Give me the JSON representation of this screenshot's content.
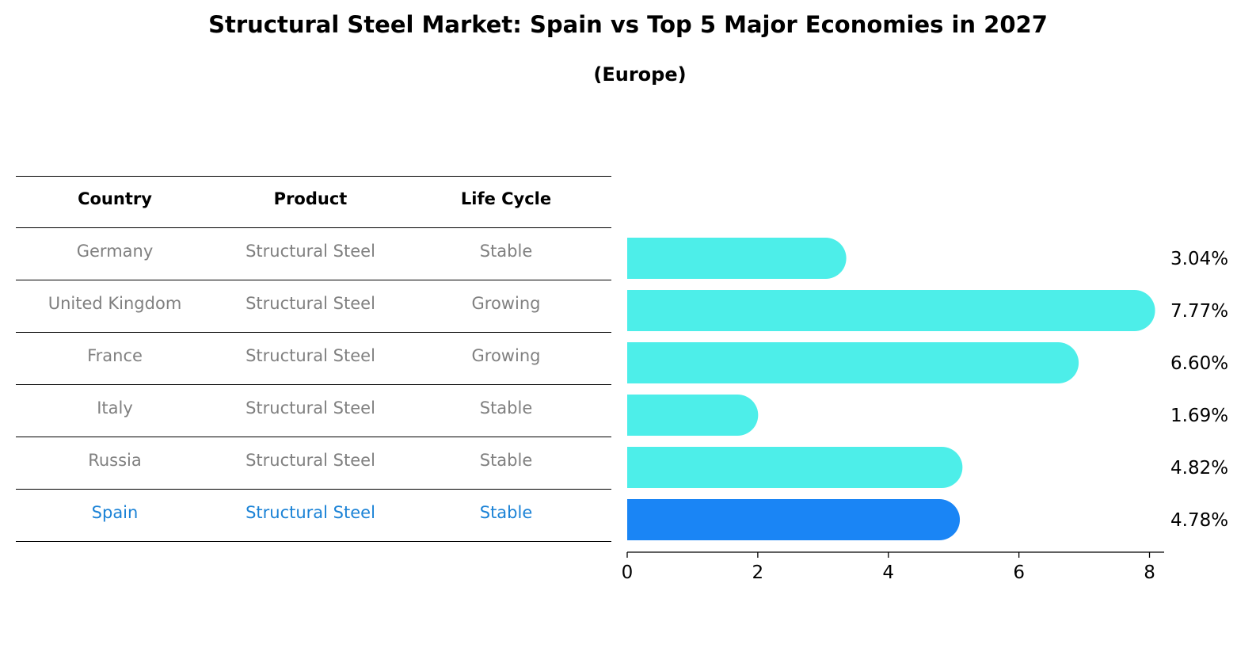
{
  "title": "Structural Steel Market: Spain vs Top 5 Major Economies in 2027",
  "subtitle": "(Europe)",
  "table": {
    "headers": [
      "Country",
      "Product",
      "Life Cycle"
    ],
    "rows": [
      {
        "country": "Germany",
        "product": "Structural Steel",
        "life_cycle": "Stable"
      },
      {
        "country": "United Kingdom",
        "product": "Structural Steel",
        "life_cycle": "Growing"
      },
      {
        "country": "France",
        "product": "Structural Steel",
        "life_cycle": "Growing"
      },
      {
        "country": "Italy",
        "product": "Structural Steel",
        "life_cycle": "Stable"
      },
      {
        "country": "Russia",
        "product": "Structural Steel",
        "life_cycle": "Stable"
      },
      {
        "country": "Spain",
        "product": "Structural Steel",
        "life_cycle": "Stable"
      }
    ]
  },
  "colors": {
    "bar": "#4deee9",
    "highlight_bar": "#1a85f5",
    "highlight_text": "#1a82d6",
    "row_text": "#808080"
  },
  "chart_data": {
    "type": "bar",
    "orientation": "horizontal",
    "title": "Structural Steel Market: Spain vs Top 5 Major Economies in 2027",
    "subtitle": "(Europe)",
    "categories": [
      "Germany",
      "United Kingdom",
      "France",
      "Italy",
      "Russia",
      "Spain"
    ],
    "values": [
      3.04,
      7.77,
      6.6,
      1.69,
      4.82,
      4.78
    ],
    "value_labels": [
      "3.04%",
      "7.77%",
      "6.60%",
      "1.69%",
      "4.82%",
      "4.78%"
    ],
    "highlight": "Spain",
    "xlim": [
      0,
      8.2
    ],
    "xticks": [
      0,
      2,
      4,
      6,
      8
    ],
    "xlabel": "",
    "ylabel": "",
    "grid": false,
    "legend": "none"
  }
}
